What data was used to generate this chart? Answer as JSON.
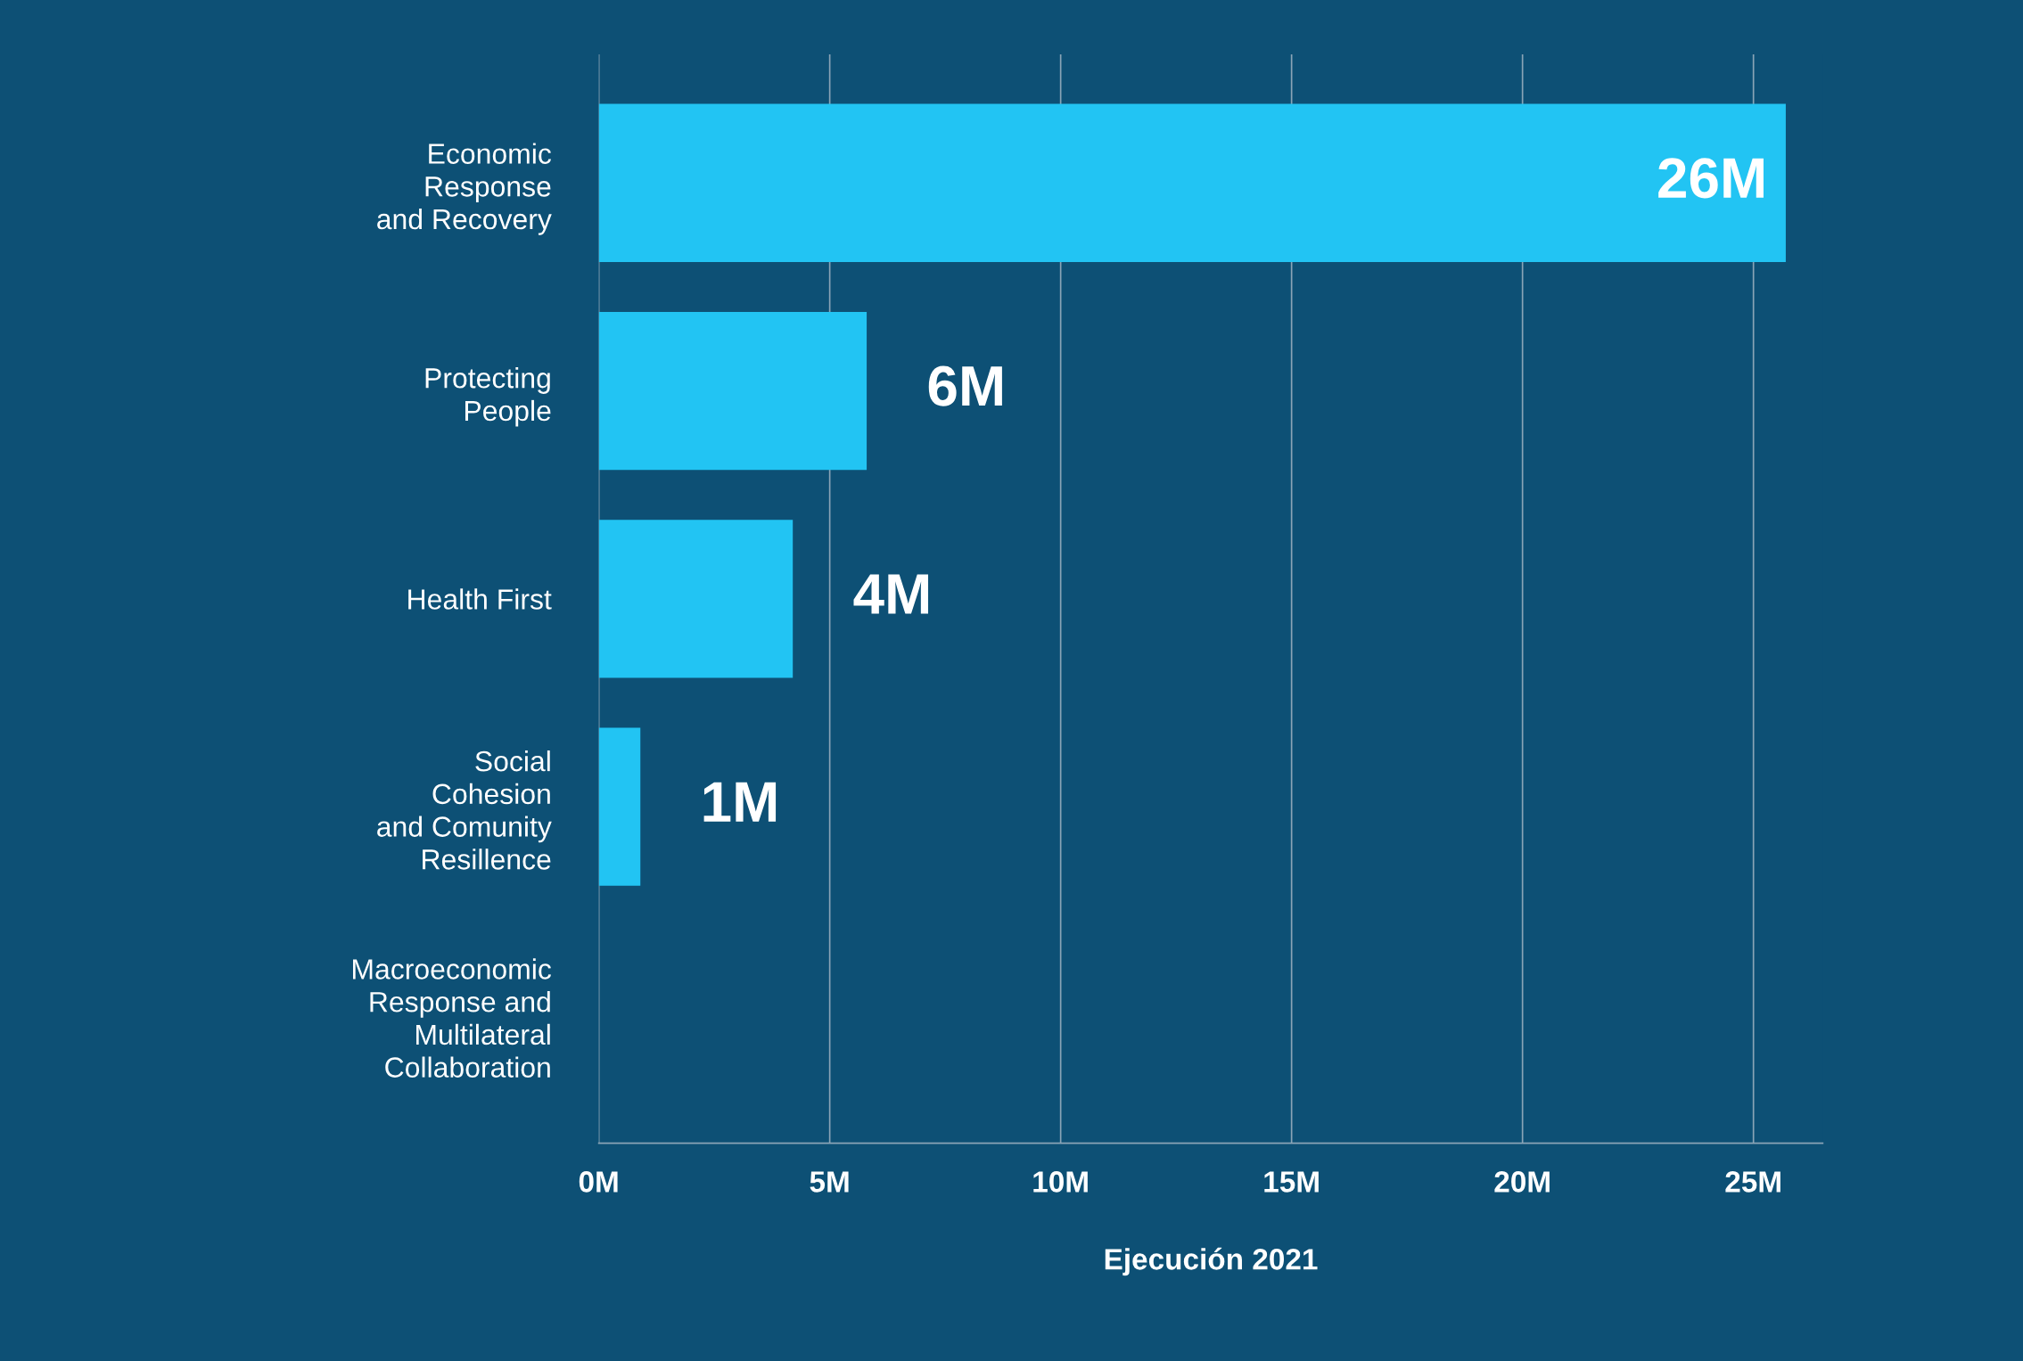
{
  "chart_data": {
    "type": "bar",
    "orientation": "horizontal",
    "categories": [
      "Economic\nResponse\nand Recovery",
      "Protecting\nPeople",
      "Health First",
      "Social\nCohesion\nand Comunity\nResillence",
      "Macroeconomic\nResponse and\nMultilateral\nCollaboration"
    ],
    "values": [
      25.7,
      5.8,
      4.2,
      0.9,
      null
    ],
    "value_labels": [
      "26M",
      "6M",
      "4M",
      "1M",
      null
    ],
    "color": "#22c4f3",
    "xlabel": "Ejecución 2021",
    "xlim": [
      0,
      26.5
    ],
    "xticks": [
      {
        "value": 0,
        "label": "0M"
      },
      {
        "value": 5,
        "label": "5M"
      },
      {
        "value": 10,
        "label": "10M"
      },
      {
        "value": 15,
        "label": "15M"
      },
      {
        "value": 20,
        "label": "20M"
      },
      {
        "value": 25,
        "label": "25M"
      }
    ],
    "grid": "x",
    "legend": false
  }
}
